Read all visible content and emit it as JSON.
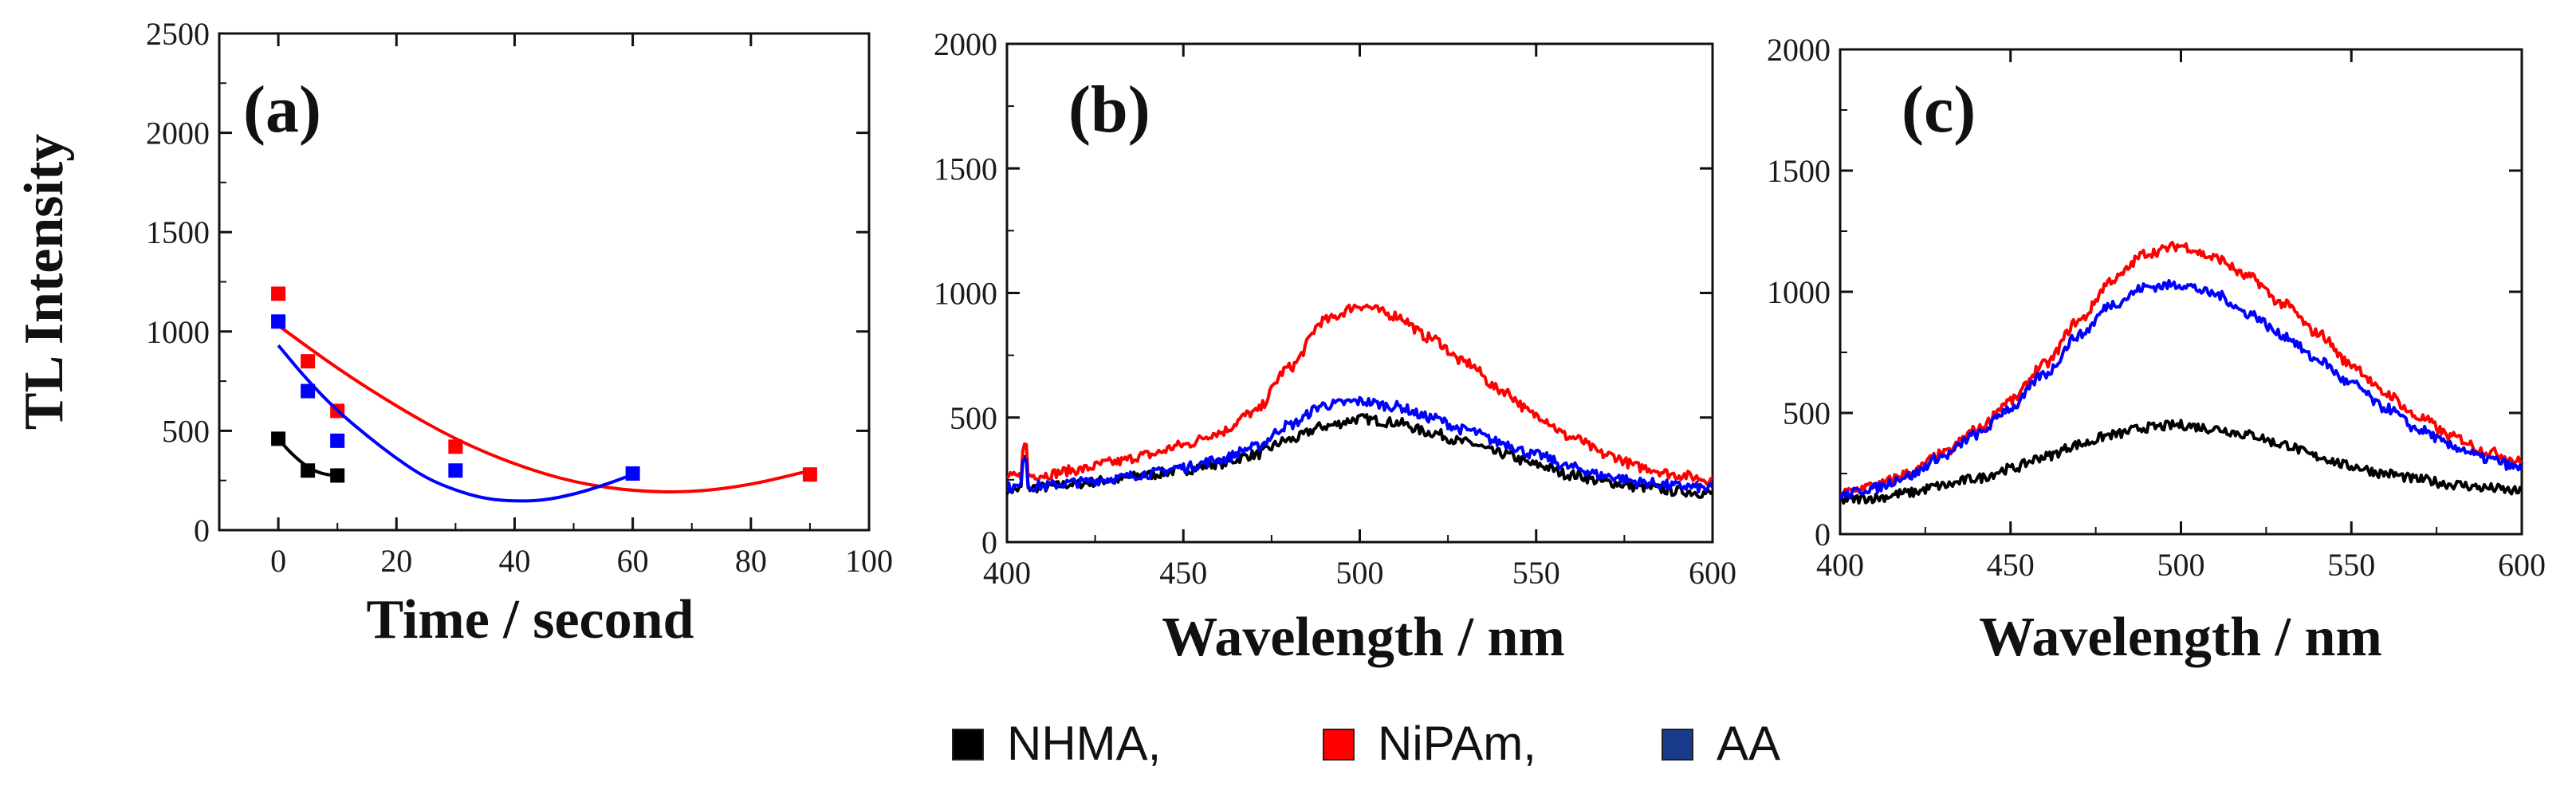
{
  "chart_data": [
    {
      "type": "scatter",
      "panel_label": "(a)",
      "xlabel": "Time / second",
      "ylabel": "TL Intensity",
      "xlim": [
        -10,
        100
      ],
      "ylim": [
        0,
        2500
      ],
      "xticks": [
        "0",
        "20",
        "40",
        "60",
        "80",
        "100"
      ],
      "yticks": [
        "0",
        "500",
        "1000",
        "1500",
        "2000",
        "2500"
      ],
      "series": [
        {
          "name": "NHMA",
          "color": "#000000",
          "x": [
            0,
            5,
            10
          ],
          "y": [
            460,
            300,
            275
          ],
          "fit": [
            [
              0,
              460
            ],
            [
              1,
              425
            ],
            [
              2,
              393
            ],
            [
              3,
              365
            ],
            [
              4,
              340
            ],
            [
              5,
              318
            ],
            [
              6,
              301
            ],
            [
              7,
              289
            ],
            [
              8,
              281
            ],
            [
              9,
              277
            ],
            [
              10,
              276
            ]
          ]
        },
        {
          "name": "NiPAm",
          "color": "#ff0000",
          "x": [
            0,
            5,
            10,
            30,
            90
          ],
          "y": [
            1190,
            850,
            600,
            420,
            280
          ],
          "fit": [
            [
              0,
              1030
            ],
            [
              10,
              813
            ],
            [
              20,
              623
            ],
            [
              30,
              456
            ],
            [
              40,
              330
            ],
            [
              50,
              240
            ],
            [
              60,
              196
            ],
            [
              70,
              190
            ],
            [
              80,
              227
            ],
            [
              90,
              300
            ]
          ]
        },
        {
          "name": "AA",
          "color": "#0000ff",
          "x": [
            0,
            5,
            10,
            30,
            60
          ],
          "y": [
            1050,
            700,
            450,
            300,
            285
          ],
          "fit": [
            [
              0,
              930
            ],
            [
              5,
              752
            ],
            [
              10,
              600
            ],
            [
              15,
              475
            ],
            [
              20,
              360
            ],
            [
              25,
              262
            ],
            [
              30,
              200
            ],
            [
              35,
              158
            ],
            [
              40,
              145
            ],
            [
              45,
              150
            ],
            [
              50,
              180
            ],
            [
              55,
              225
            ],
            [
              60,
              280
            ]
          ]
        }
      ]
    },
    {
      "type": "line",
      "panel_label": "(b)",
      "xlabel": "Wavelength / nm",
      "ylabel": "",
      "xlim": [
        400,
        600
      ],
      "ylim": [
        0,
        2000
      ],
      "xticks": [
        "400",
        "450",
        "500",
        "550",
        "600"
      ],
      "yticks": [
        "0",
        "500",
        "1000",
        "1500",
        "2000"
      ],
      "series": [
        {
          "name": "NHMA",
          "color": "#000000",
          "x": [
            400,
            410,
            420,
            430,
            440,
            450,
            460,
            470,
            480,
            490,
            500,
            510,
            520,
            530,
            540,
            550,
            560,
            570,
            580,
            590,
            600
          ],
          "y": [
            210,
            220,
            235,
            250,
            270,
            290,
            315,
            350,
            410,
            465,
            495,
            480,
            440,
            400,
            355,
            310,
            270,
            240,
            220,
            205,
            195
          ]
        },
        {
          "name": "NiPAm",
          "color": "#ff0000",
          "x": [
            400,
            410,
            420,
            430,
            440,
            450,
            460,
            470,
            480,
            490,
            500,
            510,
            520,
            530,
            540,
            550,
            560,
            570,
            580,
            590,
            600
          ],
          "y": [
            260,
            270,
            290,
            320,
            350,
            390,
            440,
            520,
            700,
            890,
            950,
            910,
            820,
            720,
            610,
            510,
            420,
            350,
            300,
            270,
            250
          ]
        },
        {
          "name": "AA",
          "color": "#0000ff",
          "x": [
            400,
            410,
            420,
            430,
            440,
            450,
            460,
            470,
            480,
            490,
            500,
            510,
            520,
            530,
            540,
            550,
            560,
            570,
            580,
            590,
            600
          ],
          "y": [
            220,
            225,
            240,
            255,
            275,
            300,
            330,
            380,
            470,
            550,
            565,
            545,
            500,
            450,
            400,
            350,
            300,
            265,
            240,
            225,
            215
          ]
        }
      ]
    },
    {
      "type": "line",
      "panel_label": "(c)",
      "xlabel": "Wavelength / nm",
      "ylabel": "",
      "xlim": [
        400,
        600
      ],
      "ylim": [
        0,
        2000
      ],
      "xticks": [
        "400",
        "450",
        "500",
        "550",
        "600"
      ],
      "yticks": [
        "0",
        "500",
        "1000",
        "1500",
        "2000"
      ],
      "series": [
        {
          "name": "NHMA",
          "color": "#000000",
          "x": [
            400,
            410,
            420,
            430,
            440,
            450,
            460,
            470,
            480,
            490,
            500,
            510,
            520,
            530,
            540,
            550,
            560,
            570,
            580,
            590,
            600
          ],
          "y": [
            140,
            150,
            170,
            200,
            230,
            270,
            320,
            370,
            410,
            440,
            450,
            435,
            410,
            370,
            320,
            280,
            250,
            225,
            205,
            190,
            175
          ]
        },
        {
          "name": "NiPAm",
          "color": "#ff0000",
          "x": [
            400,
            410,
            420,
            430,
            440,
            450,
            460,
            470,
            480,
            490,
            500,
            510,
            520,
            530,
            540,
            550,
            560,
            570,
            580,
            590,
            600
          ],
          "y": [
            170,
            200,
            250,
            330,
            430,
            550,
            700,
            880,
            1050,
            1160,
            1190,
            1140,
            1060,
            950,
            830,
            700,
            580,
            480,
            400,
            340,
            300
          ]
        },
        {
          "name": "AA",
          "color": "#0000ff",
          "x": [
            400,
            410,
            420,
            430,
            440,
            450,
            460,
            470,
            480,
            490,
            500,
            510,
            520,
            530,
            540,
            550,
            560,
            570,
            580,
            590,
            600
          ],
          "y": [
            160,
            190,
            240,
            320,
            410,
            520,
            660,
            820,
            950,
            1020,
            1030,
            990,
            910,
            820,
            720,
            620,
            520,
            430,
            360,
            310,
            270
          ]
        }
      ]
    }
  ],
  "legend": [
    {
      "label": "NHMA,",
      "color": "#000000"
    },
    {
      "label": "NiPAm,",
      "color": "#ff0000"
    },
    {
      "label": "AA",
      "color": "#1a3a8c"
    }
  ]
}
